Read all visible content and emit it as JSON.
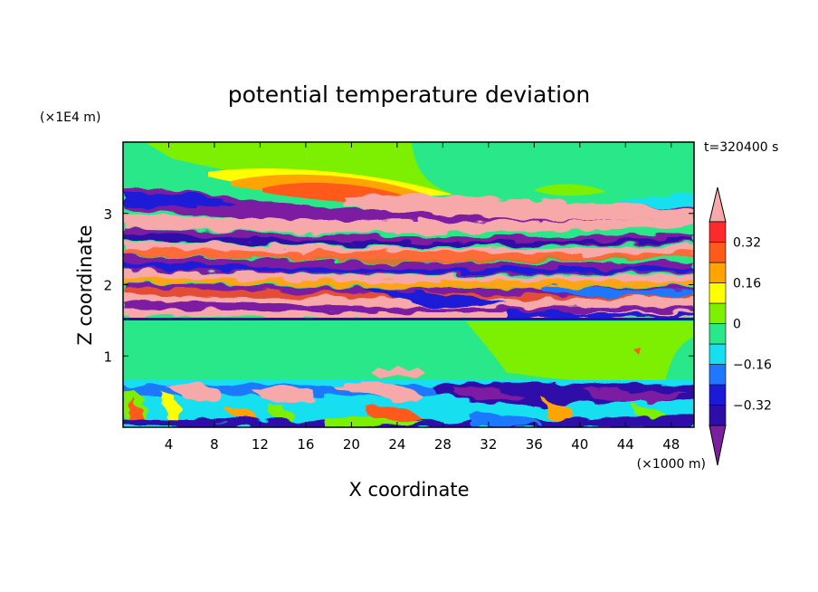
{
  "chart_data": {
    "type": "heatmap",
    "title": "potential temperature deviation",
    "xlabel": "X coordinate",
    "ylabel": "Z coordinate",
    "x_unit": "(×1000 m)",
    "y_unit": "(×1E4 m)",
    "time_label": "t=320400 s",
    "xlim": [
      0,
      50
    ],
    "ylim": [
      0,
      4
    ],
    "x_ticks": [
      4,
      8,
      12,
      16,
      20,
      24,
      28,
      32,
      36,
      40,
      44,
      48
    ],
    "x_tick_labels": [
      "4",
      "8",
      "12",
      "16",
      "20",
      "24",
      "28",
      "32",
      "36",
      "40",
      "44",
      "48"
    ],
    "y_ticks": [
      1,
      2,
      3
    ],
    "y_tick_labels": [
      "1",
      "2",
      "3"
    ],
    "colorbar": {
      "levels": [
        -0.4,
        -0.32,
        -0.24,
        -0.16,
        -0.08,
        0,
        0.08,
        0.16,
        0.24,
        0.32,
        0.4
      ],
      "colors": [
        "#7b1fa2",
        "#2e0ea8",
        "#1a1ad8",
        "#1e78ff",
        "#16e0f0",
        "#29e88a",
        "#7cf000",
        "#ffff00",
        "#ffa400",
        "#ff5a1a",
        "#ff2a2a",
        "#f7a8a8"
      ],
      "label_values": [
        "0.32",
        "0.16",
        "0",
        "−0.16",
        "−0.32"
      ]
    }
  }
}
